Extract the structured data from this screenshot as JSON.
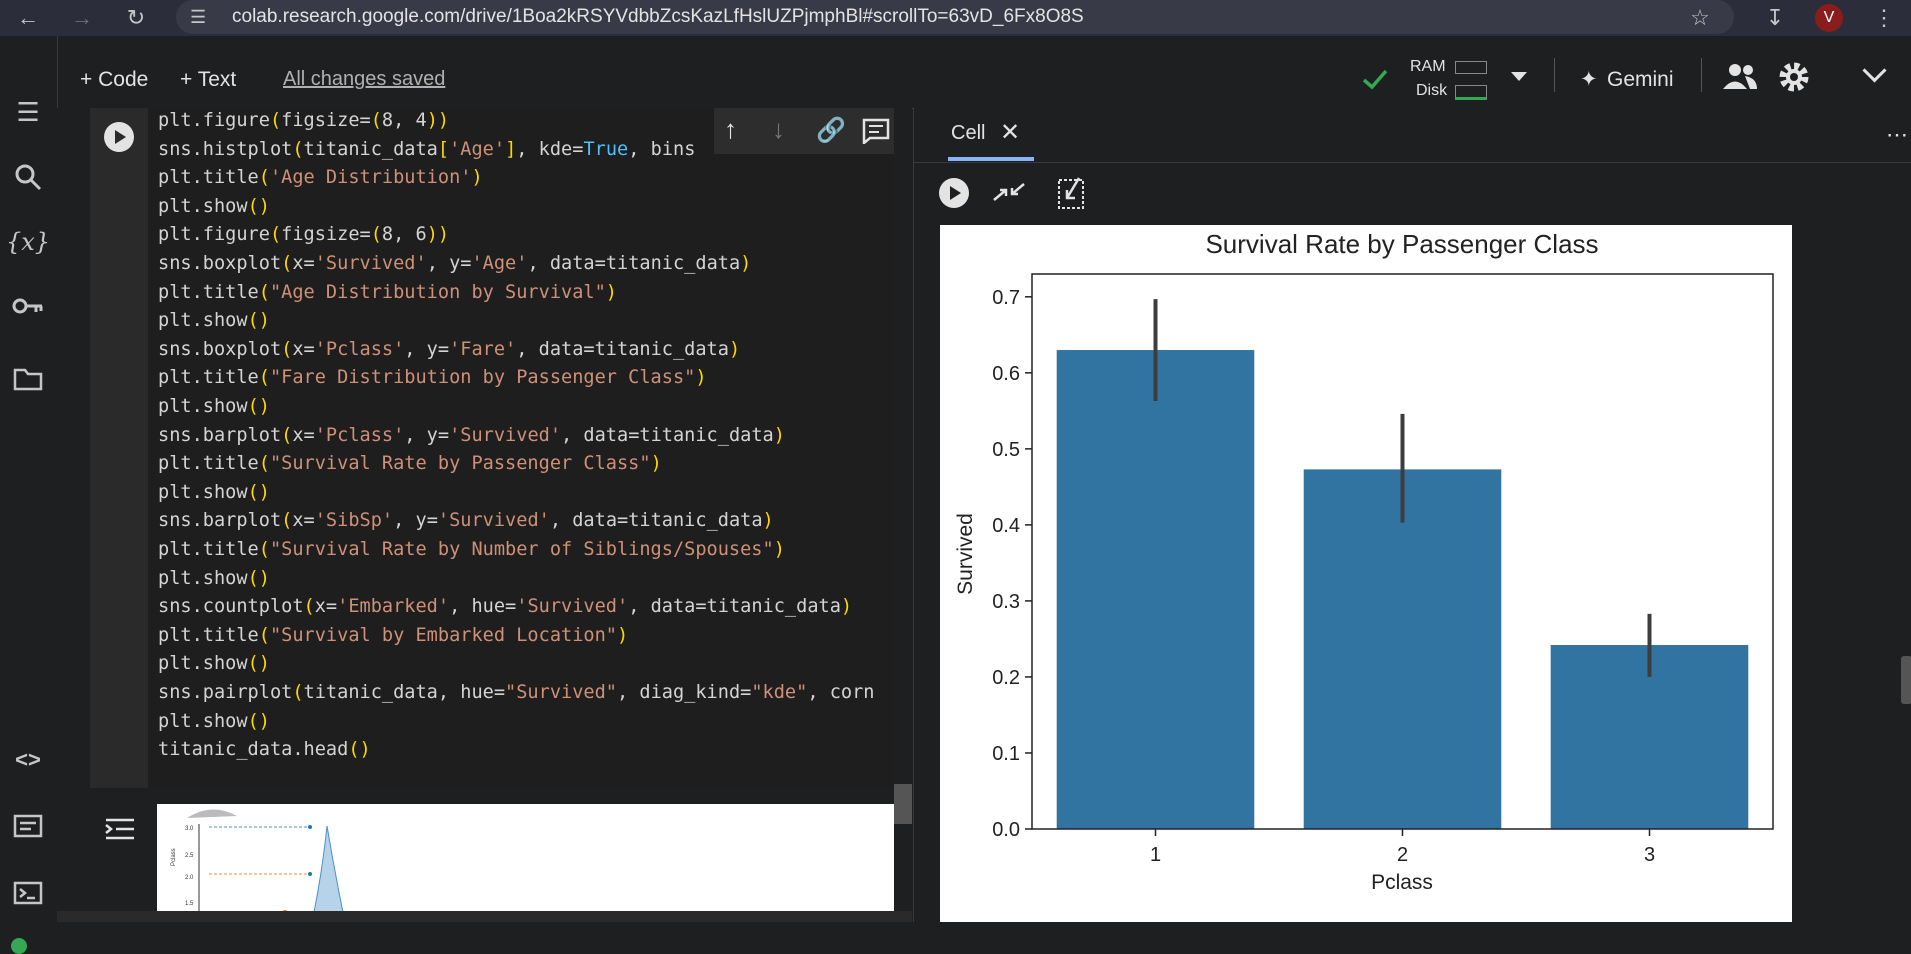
{
  "browser": {
    "url": "colab.research.google.com/drive/1Boa2kRSYVdbbZcsKazLfHslUZPjmphBl#scrollTo=63vD_6Fx8O8S",
    "profile_initial": "V"
  },
  "toolbar": {
    "add_code": "+ Code",
    "add_text": "+ Text",
    "saved_status": "All changes saved",
    "ram_label": "RAM",
    "disk_label": "Disk",
    "gemini_label": "Gemini"
  },
  "code_lines": [
    [
      {
        "t": "plt.figure"
      },
      {
        "t": "(",
        "c": "par"
      },
      {
        "t": "figsize="
      },
      {
        "t": "(",
        "c": "par"
      },
      {
        "t": "8, 4"
      },
      {
        "t": "))",
        "c": "par"
      }
    ],
    [
      {
        "t": "sns.histplot"
      },
      {
        "t": "(",
        "c": "par"
      },
      {
        "t": "titanic_data"
      },
      {
        "t": "[",
        "c": "par"
      },
      {
        "t": "'Age'",
        "c": "str"
      },
      {
        "t": "]",
        "c": "par"
      },
      {
        "t": ", kde="
      },
      {
        "t": "True",
        "c": "kw"
      },
      {
        "t": ", bins"
      }
    ],
    [
      {
        "t": "plt.title"
      },
      {
        "t": "(",
        "c": "par"
      },
      {
        "t": "'Age Distribution'",
        "c": "str"
      },
      {
        "t": ")",
        "c": "par"
      }
    ],
    [
      {
        "t": "plt.show"
      },
      {
        "t": "()",
        "c": "par"
      }
    ],
    [
      {
        "t": "plt.figure"
      },
      {
        "t": "(",
        "c": "par"
      },
      {
        "t": "figsize="
      },
      {
        "t": "(",
        "c": "par"
      },
      {
        "t": "8, 6"
      },
      {
        "t": "))",
        "c": "par"
      }
    ],
    [
      {
        "t": "sns.boxplot"
      },
      {
        "t": "(",
        "c": "par"
      },
      {
        "t": "x="
      },
      {
        "t": "'Survived'",
        "c": "str"
      },
      {
        "t": ", y="
      },
      {
        "t": "'Age'",
        "c": "str"
      },
      {
        "t": ", data=titanic_data"
      },
      {
        "t": ")",
        "c": "par"
      }
    ],
    [
      {
        "t": "plt.title"
      },
      {
        "t": "(",
        "c": "par"
      },
      {
        "t": "\"Age Distribution by Survival\"",
        "c": "str"
      },
      {
        "t": ")",
        "c": "par"
      }
    ],
    [
      {
        "t": "plt.show"
      },
      {
        "t": "()",
        "c": "par"
      }
    ],
    [
      {
        "t": "sns.boxplot"
      },
      {
        "t": "(",
        "c": "par"
      },
      {
        "t": "x="
      },
      {
        "t": "'Pclass'",
        "c": "str"
      },
      {
        "t": ", y="
      },
      {
        "t": "'Fare'",
        "c": "str"
      },
      {
        "t": ", data=titanic_data"
      },
      {
        "t": ")",
        "c": "par"
      }
    ],
    [
      {
        "t": "plt.title"
      },
      {
        "t": "(",
        "c": "par"
      },
      {
        "t": "\"Fare Distribution by Passenger Class\"",
        "c": "str"
      },
      {
        "t": ")",
        "c": "par"
      }
    ],
    [
      {
        "t": "plt.show"
      },
      {
        "t": "()",
        "c": "par"
      }
    ],
    [
      {
        "t": "sns.barplot"
      },
      {
        "t": "(",
        "c": "par"
      },
      {
        "t": "x="
      },
      {
        "t": "'Pclass'",
        "c": "str"
      },
      {
        "t": ", y="
      },
      {
        "t": "'Survived'",
        "c": "str"
      },
      {
        "t": ", data=titanic_data"
      },
      {
        "t": ")",
        "c": "par"
      }
    ],
    [
      {
        "t": "plt.title"
      },
      {
        "t": "(",
        "c": "par"
      },
      {
        "t": "\"Survival Rate by Passenger Class\"",
        "c": "str"
      },
      {
        "t": ")",
        "c": "par"
      }
    ],
    [
      {
        "t": "plt.show"
      },
      {
        "t": "()",
        "c": "par"
      }
    ],
    [
      {
        "t": "sns.barplot"
      },
      {
        "t": "(",
        "c": "par"
      },
      {
        "t": "x="
      },
      {
        "t": "'SibSp'",
        "c": "str"
      },
      {
        "t": ", y="
      },
      {
        "t": "'Survived'",
        "c": "str"
      },
      {
        "t": ", data=titanic_data"
      },
      {
        "t": ")",
        "c": "par"
      }
    ],
    [
      {
        "t": "plt.title"
      },
      {
        "t": "(",
        "c": "par"
      },
      {
        "t": "\"Survival Rate by Number of Siblings/Spouses\"",
        "c": "str"
      },
      {
        "t": ")",
        "c": "par"
      }
    ],
    [
      {
        "t": "plt.show"
      },
      {
        "t": "()",
        "c": "par"
      }
    ],
    [
      {
        "t": "sns.countplot"
      },
      {
        "t": "(",
        "c": "par"
      },
      {
        "t": "x="
      },
      {
        "t": "'Embarked'",
        "c": "str"
      },
      {
        "t": ", hue="
      },
      {
        "t": "'Survived'",
        "c": "str"
      },
      {
        "t": ", data=titanic_data"
      },
      {
        "t": ")",
        "c": "par"
      }
    ],
    [
      {
        "t": "plt.title"
      },
      {
        "t": "(",
        "c": "par"
      },
      {
        "t": "\"Survival by Embarked Location\"",
        "c": "str"
      },
      {
        "t": ")",
        "c": "par"
      }
    ],
    [
      {
        "t": "plt.show"
      },
      {
        "t": "()",
        "c": "par"
      }
    ],
    [
      {
        "t": "sns.pairplot"
      },
      {
        "t": "(",
        "c": "par"
      },
      {
        "t": "titanic_data, hue="
      },
      {
        "t": "\"Survived\"",
        "c": "str"
      },
      {
        "t": ", diag_kind="
      },
      {
        "t": "\"kde\"",
        "c": "str"
      },
      {
        "t": ", corn"
      }
    ],
    [
      {
        "t": "plt.show"
      },
      {
        "t": "()",
        "c": "par"
      }
    ],
    [
      {
        "t": "titanic_data.head"
      },
      {
        "t": "()",
        "c": "par"
      }
    ]
  ],
  "output_preview": {
    "yticks": [
      "3.0",
      "2.5",
      "2.0",
      "1.5"
    ],
    "ylabel": "Pclass"
  },
  "panel": {
    "tab_label": "Cell"
  },
  "chart_data": {
    "type": "bar",
    "title": "Survival Rate by Passenger Class",
    "xlabel": "Pclass",
    "ylabel": "Survived",
    "categories": [
      "1",
      "2",
      "3"
    ],
    "values": [
      0.63,
      0.473,
      0.242
    ],
    "error_low": [
      0.563,
      0.403,
      0.2
    ],
    "error_high": [
      0.697,
      0.546,
      0.283
    ],
    "ylim": [
      0,
      0.73
    ],
    "yticks": [
      0.0,
      0.1,
      0.2,
      0.3,
      0.4,
      0.5,
      0.6,
      0.7
    ],
    "ytick_labels": [
      "0.0",
      "0.1",
      "0.2",
      "0.3",
      "0.4",
      "0.5",
      "0.6",
      "0.7"
    ],
    "bar_color": "#3274a1",
    "grid": false
  }
}
